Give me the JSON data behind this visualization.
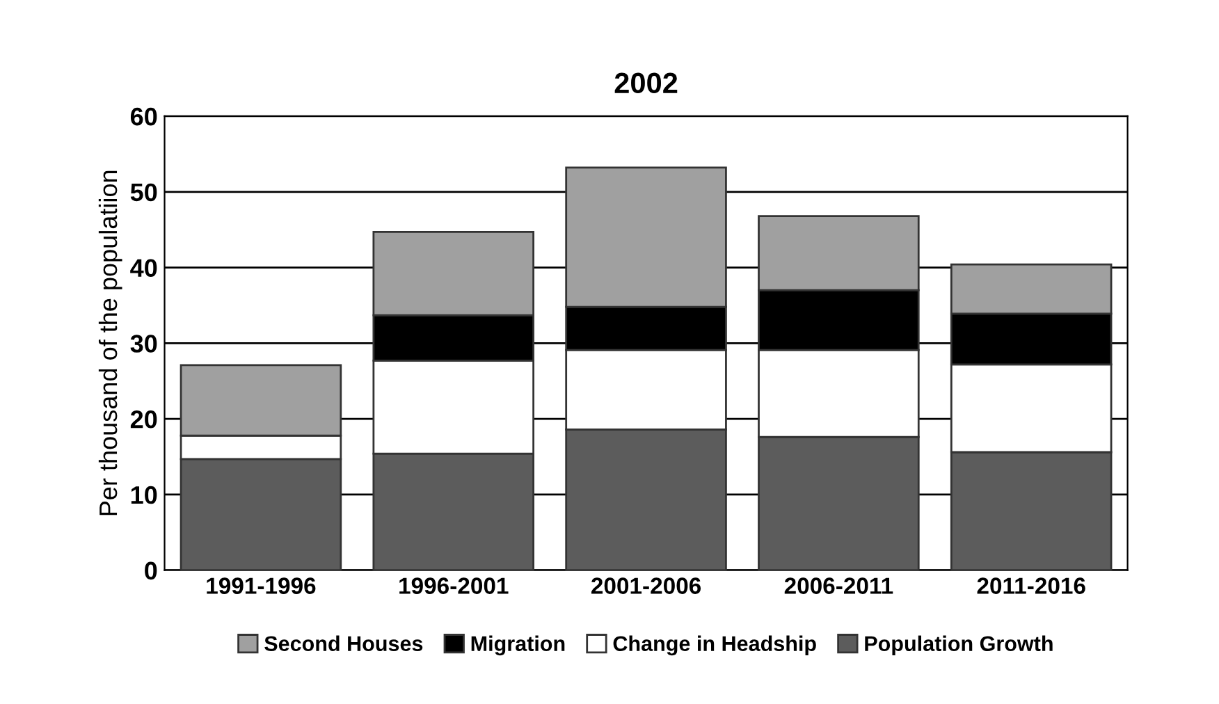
{
  "chart_data": {
    "type": "bar",
    "title": "2002",
    "ylabel": "Per thousand of the populatiion",
    "categories": [
      "1991-1996",
      "1996-2001",
      "2001-2006",
      "2006-2011",
      "2011-2016"
    ],
    "stacked": true,
    "series": [
      {
        "name": "Population Growth",
        "color": "#5c5c5c",
        "values": [
          14.7,
          15.4,
          18.6,
          17.6,
          15.6
        ]
      },
      {
        "name": "Change in Headship",
        "color": "#ffffff",
        "values": [
          3.1,
          12.3,
          10.5,
          11.5,
          11.6
        ]
      },
      {
        "name": "Migration",
        "color": "#000000",
        "values": [
          0,
          6.0,
          5.7,
          7.9,
          6.7
        ]
      },
      {
        "name": "Second Houses",
        "color": "#a0a0a0",
        "values": [
          9.3,
          11.0,
          18.4,
          9.8,
          6.5
        ]
      }
    ],
    "ylim": [
      0,
      60
    ],
    "yticks": [
      0,
      10,
      20,
      30,
      40,
      50,
      60
    ],
    "grid": "y",
    "legend": "bottom"
  }
}
